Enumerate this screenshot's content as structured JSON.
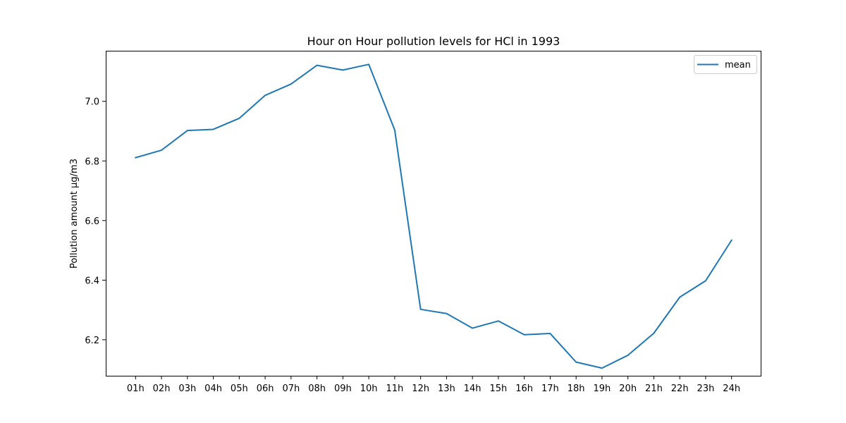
{
  "chart_data": {
    "type": "line",
    "title": "Hour on Hour pollution levels for HCl in 1993",
    "xlabel": "",
    "ylabel": "Pollution amount µg/m3",
    "categories": [
      "01h",
      "02h",
      "03h",
      "04h",
      "05h",
      "06h",
      "07h",
      "08h",
      "09h",
      "10h",
      "11h",
      "12h",
      "13h",
      "14h",
      "15h",
      "16h",
      "17h",
      "18h",
      "19h",
      "20h",
      "21h",
      "22h",
      "23h",
      "24h"
    ],
    "series": [
      {
        "name": "mean",
        "color": "#1f77b4",
        "values": [
          6.811,
          6.836,
          6.902,
          6.906,
          6.943,
          7.02,
          7.058,
          7.121,
          7.105,
          7.124,
          6.904,
          6.302,
          6.288,
          6.239,
          6.263,
          6.217,
          6.221,
          6.125,
          6.105,
          6.148,
          6.222,
          6.343,
          6.398,
          6.534
        ]
      }
    ],
    "ylim": [
      6.0792,
      7.1697
    ],
    "yticks": [
      6.2,
      6.4,
      6.6,
      6.8,
      7.0
    ],
    "ytick_labels": [
      "6.2",
      "6.4",
      "6.6",
      "6.8",
      "7.0"
    ],
    "grid": false,
    "legend_position": "upper right"
  }
}
